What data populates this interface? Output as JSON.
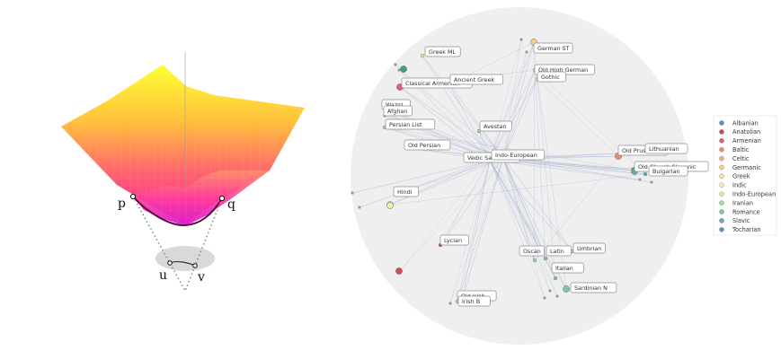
{
  "left_figure": {
    "point_labels": {
      "p": "p",
      "q": "q",
      "u": "u",
      "v": "v"
    },
    "colors": {
      "surface_top": "#ffff33",
      "surface_mid": "#ff7f50",
      "surface_low": "#ff1a9c",
      "curve": "#6a0a4a",
      "shadow": "#d9d9d9"
    }
  },
  "graph": {
    "disk_color": "#efefef",
    "edge_color": "#8fa0c8",
    "nodes": [
      {
        "name": "Greek ML",
        "group": "Greek"
      },
      {
        "name": "Classical Armenian",
        "group": "Armenian"
      },
      {
        "name": "Ancient Greek",
        "group": "Greek"
      },
      {
        "name": "German ST",
        "group": "Germanic"
      },
      {
        "name": "Old High German",
        "group": "Germanic"
      },
      {
        "name": "Gothic",
        "group": "Germanic"
      },
      {
        "name": "Waziri",
        "group": "Iranian"
      },
      {
        "name": "Afghan",
        "group": "Iranian"
      },
      {
        "name": "Persian List",
        "group": "Iranian"
      },
      {
        "name": "Avestan",
        "group": "Iranian"
      },
      {
        "name": "Old Persian",
        "group": "Iranian"
      },
      {
        "name": "Vedic Sanskrit",
        "group": "Indic"
      },
      {
        "name": "Indo-European",
        "group": "Indo-European"
      },
      {
        "name": "Old Prussian",
        "group": "Baltic"
      },
      {
        "name": "Lithuanian",
        "group": "Baltic"
      },
      {
        "name": "Old Church Slavonic",
        "group": "Slavic"
      },
      {
        "name": "Bulgarian",
        "group": "Slavic"
      },
      {
        "name": "Hindi",
        "group": "Indic"
      },
      {
        "name": "Lycian",
        "group": "Anatolian"
      },
      {
        "name": "Umbrian",
        "group": "Italic"
      },
      {
        "name": "Oscan",
        "group": "Italic"
      },
      {
        "name": "Latin",
        "group": "Romance"
      },
      {
        "name": "Italian",
        "group": "Romance"
      },
      {
        "name": "Sardinian N",
        "group": "Romance"
      },
      {
        "name": "Old Irish",
        "group": "Celtic"
      },
      {
        "name": "Irish B",
        "group": "Celtic"
      }
    ],
    "legend": [
      {
        "label": "Albanian",
        "color": "#5b8fc7"
      },
      {
        "label": "Anatolian",
        "color": "#d6455e"
      },
      {
        "label": "Armenian",
        "color": "#e0607a"
      },
      {
        "label": "Baltic",
        "color": "#ee8a6a"
      },
      {
        "label": "Celtic",
        "color": "#f2b07a"
      },
      {
        "label": "Germanic",
        "color": "#f5cd86"
      },
      {
        "label": "Greek",
        "color": "#f4e29a"
      },
      {
        "label": "Indic",
        "color": "#eef0a8"
      },
      {
        "label": "Indo-European",
        "color": "#d3eaa8"
      },
      {
        "label": "Iranian",
        "color": "#a9d8a0"
      },
      {
        "label": "Romance",
        "color": "#7cc7a4"
      },
      {
        "label": "Slavic",
        "color": "#61acb0"
      },
      {
        "label": "Tocharian",
        "color": "#5f8fc4"
      }
    ]
  }
}
